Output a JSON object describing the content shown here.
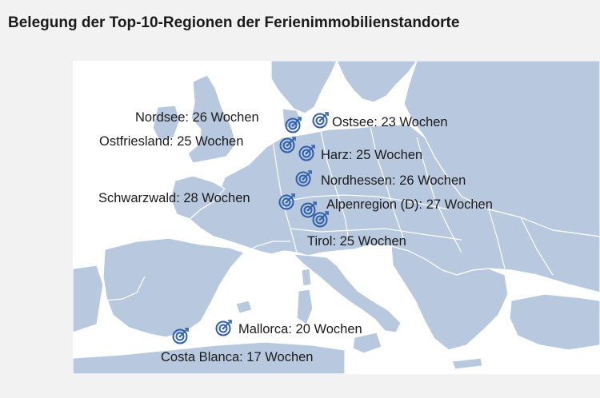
{
  "title": "Belegung der Top-10-Regionen der Ferienimmobilienstandorte",
  "colors": {
    "land": "#b8c9df",
    "sea": "#ffffff",
    "border": "#ffffff",
    "marker": "#2e5faa"
  },
  "markers": [
    {
      "id": "nordsee",
      "label": "Nordsee: 26 Wochen",
      "region": "Nordsee",
      "weeks": 26
    },
    {
      "id": "ostsee",
      "label": "Ostsee: 23 Wochen",
      "region": "Ostsee",
      "weeks": 23
    },
    {
      "id": "ostfriesland",
      "label": "Ostfriesland: 25 Wochen",
      "region": "Ostfriesland",
      "weeks": 25
    },
    {
      "id": "harz",
      "label": "Harz: 25 Wochen",
      "region": "Harz",
      "weeks": 25
    },
    {
      "id": "nordhessen",
      "label": "Nordhessen: 26 Wochen",
      "region": "Nordhessen",
      "weeks": 26
    },
    {
      "id": "schwarzwald",
      "label": "Schwarzwald: 28 Wochen",
      "region": "Schwarzwald",
      "weeks": 28
    },
    {
      "id": "alpenregion",
      "label": "Alpenregion (D): 27 Wochen",
      "region": "Alpenregion (D)",
      "weeks": 27
    },
    {
      "id": "tirol",
      "label": "Tirol: 25 Wochen",
      "region": "Tirol",
      "weeks": 25
    },
    {
      "id": "mallorca",
      "label": "Mallorca: 20 Wochen",
      "region": "Mallorca",
      "weeks": 20
    },
    {
      "id": "costa-blanca",
      "label": "Costa Blanca: 17 Wochen",
      "region": "Costa Blanca",
      "weeks": 17
    }
  ]
}
